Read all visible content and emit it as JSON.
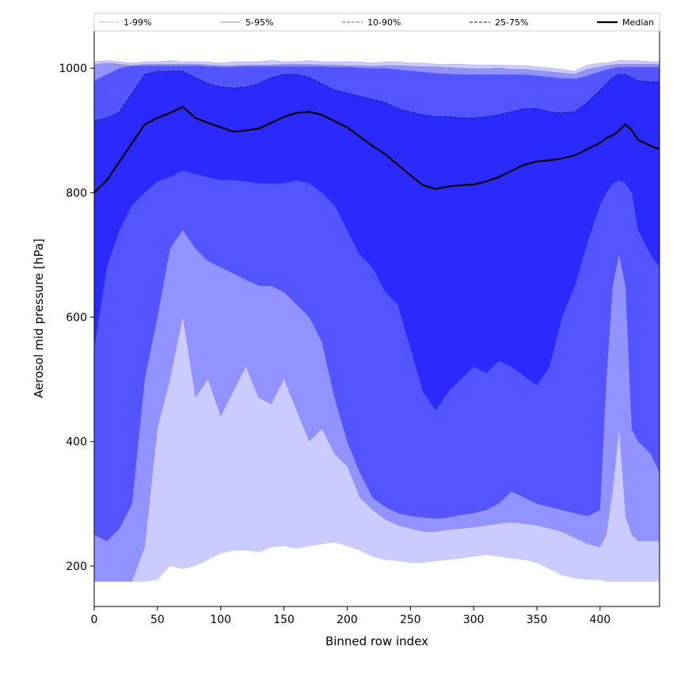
{
  "chart_data": {
    "type": "area",
    "title": "",
    "xlabel": "Binned row index",
    "ylabel": "Aerosol mid pressure [hPa]",
    "xlim": [
      0,
      447
    ],
    "ylim": [
      135,
      1060
    ],
    "xticks": [
      0,
      50,
      100,
      150,
      200,
      250,
      300,
      350,
      400
    ],
    "yticks": [
      200,
      400,
      600,
      800,
      1000
    ],
    "legend_position": "top (horizontal strip above axes)",
    "grid": false,
    "fill_floor": 175,
    "x": [
      0,
      10,
      20,
      30,
      40,
      50,
      60,
      70,
      80,
      90,
      100,
      110,
      120,
      130,
      140,
      150,
      160,
      170,
      180,
      190,
      200,
      210,
      220,
      230,
      240,
      250,
      260,
      270,
      280,
      290,
      300,
      310,
      320,
      330,
      340,
      350,
      360,
      370,
      380,
      390,
      400,
      405,
      410,
      415,
      420,
      425,
      430,
      440,
      447
    ],
    "bands": [
      {
        "name": "1-99%",
        "color": "#cccbff",
        "line_color": "#b8b8ee",
        "line_style": "solid",
        "lower": [
          175,
          175,
          175,
          175,
          175,
          178,
          200,
          195,
          200,
          210,
          220,
          225,
          225,
          222,
          230,
          232,
          228,
          232,
          235,
          238,
          232,
          225,
          215,
          210,
          208,
          205,
          205,
          208,
          210,
          212,
          215,
          218,
          215,
          212,
          210,
          205,
          195,
          185,
          180,
          178,
          178,
          175,
          175,
          175,
          175,
          175,
          175,
          175,
          175
        ],
        "upper": [
          1010,
          1012,
          1010,
          1008,
          1010,
          1010,
          1012,
          1010,
          1010,
          1010,
          1008,
          1010,
          1010,
          1010,
          1012,
          1010,
          1010,
          1012,
          1010,
          1010,
          1010,
          1010,
          1008,
          1010,
          1010,
          1008,
          1008,
          1006,
          1006,
          1006,
          1005,
          1005,
          1005,
          1004,
          1004,
          1002,
          1000,
          998,
          995,
          1005,
          1008,
          1008,
          1010,
          1012,
          1012,
          1012,
          1012,
          1010,
          1010
        ]
      },
      {
        "name": "5-95%",
        "color": "#9393ff",
        "line_color": "#8c8cd8",
        "line_style": "solid",
        "lower": [
          175,
          175,
          175,
          175,
          230,
          420,
          500,
          600,
          470,
          500,
          440,
          480,
          520,
          470,
          460,
          500,
          450,
          400,
          420,
          380,
          360,
          310,
          290,
          275,
          265,
          260,
          255,
          255,
          258,
          260,
          262,
          265,
          268,
          270,
          268,
          265,
          260,
          255,
          245,
          235,
          230,
          250,
          320,
          420,
          280,
          250,
          240,
          240,
          240
        ],
        "upper": [
          1005,
          1008,
          1006,
          1004,
          1006,
          1006,
          1006,
          1006,
          1006,
          1005,
          1004,
          1004,
          1005,
          1005,
          1005,
          1006,
          1006,
          1006,
          1005,
          1005,
          1004,
          1004,
          1003,
          1004,
          1004,
          1003,
          1002,
          1002,
          1001,
          1000,
          999,
          999,
          1000,
          998,
          998,
          996,
          994,
          992,
          990,
          998,
          1002,
          1004,
          1005,
          1006,
          1006,
          1006,
          1006,
          1006,
          1006
        ]
      },
      {
        "name": "10-90%",
        "color": "#5555ff",
        "line_color": "#7c7cea",
        "line_style": "dashed",
        "lower": [
          250,
          240,
          260,
          300,
          500,
          600,
          710,
          740,
          710,
          690,
          680,
          670,
          660,
          650,
          650,
          640,
          620,
          600,
          560,
          470,
          400,
          350,
          310,
          295,
          285,
          280,
          278,
          276,
          278,
          282,
          285,
          290,
          300,
          320,
          310,
          300,
          295,
          290,
          285,
          280,
          290,
          500,
          650,
          700,
          650,
          420,
          400,
          380,
          350
        ],
        "upper": [
          980,
          990,
          1000,
          1004,
          1004,
          1004,
          1004,
          1004,
          1004,
          1003,
          1002,
          1002,
          1003,
          1003,
          1003,
          1003,
          1003,
          1003,
          1003,
          1002,
          1002,
          1001,
          1000,
          1000,
          998,
          996,
          994,
          992,
          991,
          990,
          990,
          990,
          990,
          990,
          990,
          988,
          986,
          984,
          983,
          988,
          995,
          998,
          1000,
          1002,
          1002,
          1002,
          1002,
          1002,
          1002
        ]
      },
      {
        "name": "25-75%",
        "color": "#2a2aff",
        "line_color": "#1a1a8a",
        "line_style": "dashed",
        "lower": [
          550,
          680,
          740,
          780,
          800,
          818,
          825,
          835,
          830,
          825,
          820,
          820,
          818,
          815,
          815,
          815,
          820,
          815,
          800,
          780,
          740,
          700,
          680,
          640,
          620,
          550,
          480,
          450,
          480,
          500,
          520,
          510,
          530,
          520,
          505,
          490,
          520,
          600,
          650,
          720,
          780,
          800,
          815,
          820,
          815,
          800,
          740,
          700,
          680
        ],
        "upper": [
          915,
          920,
          930,
          960,
          990,
          995,
          995,
          995,
          985,
          975,
          970,
          968,
          970,
          975,
          985,
          990,
          990,
          985,
          975,
          965,
          960,
          955,
          950,
          945,
          935,
          930,
          925,
          922,
          922,
          920,
          920,
          922,
          925,
          930,
          935,
          935,
          930,
          928,
          930,
          945,
          965,
          975,
          985,
          990,
          990,
          985,
          980,
          978,
          978
        ]
      }
    ],
    "series": [
      {
        "name": "Median",
        "color": "#000000",
        "y": [
          800,
          820,
          850,
          880,
          910,
          920,
          928,
          938,
          920,
          912,
          905,
          898,
          900,
          903,
          912,
          922,
          928,
          930,
          925,
          915,
          905,
          890,
          875,
          862,
          845,
          828,
          812,
          806,
          810,
          812,
          813,
          818,
          825,
          835,
          845,
          850,
          852,
          855,
          860,
          870,
          880,
          888,
          892,
          900,
          910,
          900,
          885,
          875,
          870
        ]
      }
    ],
    "legend": [
      "1-99%",
      "5-95%",
      "10-90%",
      "25-75%",
      "Median"
    ]
  }
}
